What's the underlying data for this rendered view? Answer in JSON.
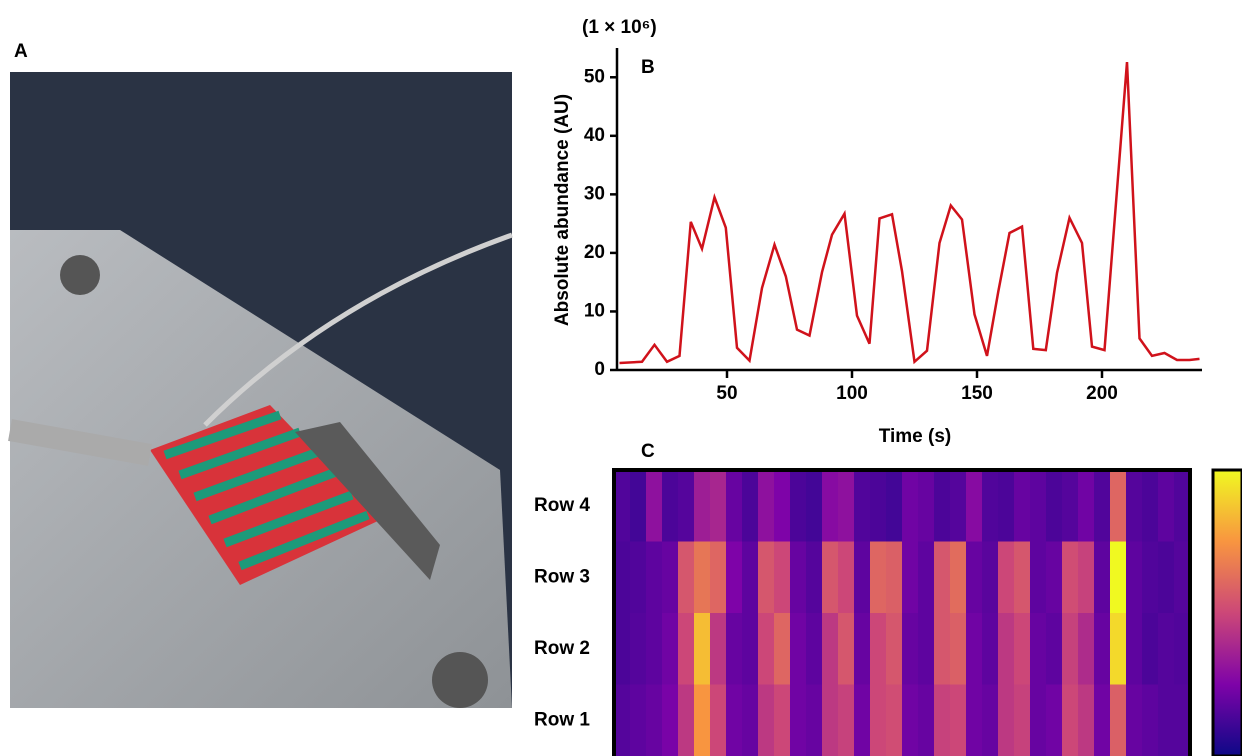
{
  "panel_a": {
    "label": "A"
  },
  "chart_data": [
    {
      "type": "line",
      "panel_label": "B",
      "scale_note": "(1 × 10⁶)",
      "y_label": "Absolute abundance (AU)",
      "x_label": "Time (s)",
      "xlim": [
        6,
        240
      ],
      "xticks": [
        50,
        100,
        150,
        200
      ],
      "ylim": [
        0,
        55
      ],
      "yticks": [
        0,
        10,
        20,
        30,
        40,
        50
      ],
      "series": [
        {
          "color": "#d0121b",
          "x": [
            7,
            16,
            21,
            26,
            31,
            35.5,
            40,
            45,
            49.5,
            54,
            59,
            64,
            69,
            73.5,
            78,
            83,
            88,
            92,
            97,
            102,
            107,
            111,
            116,
            120,
            125,
            130,
            135,
            139.5,
            144,
            149,
            154,
            158.5,
            163,
            168,
            172.5,
            177.5,
            182,
            187,
            192,
            196,
            201,
            210,
            215,
            220,
            225,
            230,
            235,
            239
          ],
          "values": [
            1.2,
            1.4,
            4.3,
            1.4,
            2.4,
            25.3,
            20.7,
            29.5,
            24.3,
            3.8,
            1.6,
            14,
            21.4,
            16,
            6.9,
            5.9,
            16.7,
            23.1,
            26.7,
            9.3,
            4.5,
            25.9,
            26.6,
            16.9,
            1.4,
            3.3,
            21.7,
            28.1,
            25.7,
            9.5,
            2.4,
            13.4,
            23.4,
            24.5,
            3.6,
            3.4,
            16.6,
            26,
            21.7,
            4,
            3.4,
            52.6,
            5.4,
            2.4,
            2.9,
            1.7,
            1.7,
            1.9
          ]
        }
      ]
    },
    {
      "type": "heatmap",
      "panel_label": "C",
      "colormap": "plasma",
      "clim": [
        0,
        100
      ],
      "rows": [
        {
          "name": "Row 4",
          "values": [
            15,
            12,
            30,
            14,
            16,
            35,
            38,
            20,
            14,
            30,
            25,
            14,
            12,
            28,
            30,
            15,
            14,
            12,
            22,
            20,
            14,
            16,
            28,
            15,
            14,
            20,
            18,
            14,
            16,
            22,
            15,
            60,
            16,
            14,
            18,
            15
          ]
        },
        {
          "name": "Row 3",
          "values": [
            14,
            15,
            18,
            20,
            55,
            65,
            60,
            25,
            18,
            55,
            50,
            20,
            16,
            55,
            50,
            18,
            60,
            58,
            22,
            18,
            55,
            62,
            20,
            17,
            50,
            55,
            18,
            20,
            52,
            48,
            18,
            100,
            18,
            15,
            14,
            16
          ]
        },
        {
          "name": "Row 2",
          "values": [
            14,
            16,
            18,
            22,
            50,
            85,
            45,
            20,
            18,
            50,
            60,
            22,
            18,
            45,
            55,
            20,
            50,
            55,
            20,
            18,
            55,
            58,
            22,
            18,
            45,
            50,
            20,
            18,
            48,
            40,
            20,
            92,
            18,
            14,
            16,
            15
          ]
        },
        {
          "name": "Row 1",
          "values": [
            16,
            18,
            20,
            24,
            45,
            75,
            50,
            22,
            20,
            45,
            50,
            22,
            20,
            45,
            48,
            22,
            50,
            52,
            22,
            20,
            48,
            50,
            22,
            20,
            45,
            48,
            20,
            22,
            50,
            45,
            22,
            58,
            20,
            18,
            16,
            16
          ]
        }
      ]
    }
  ]
}
